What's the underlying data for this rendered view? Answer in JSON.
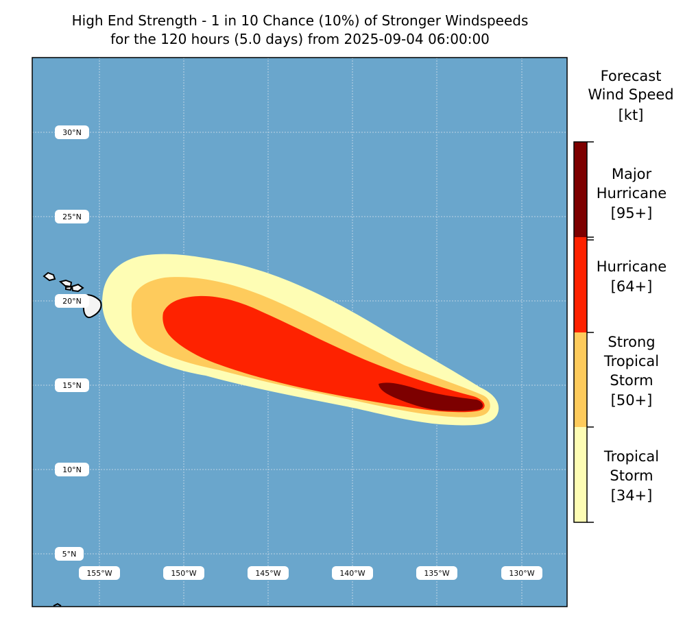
{
  "title": {
    "line1": "High End Strength - 1 in 10 Chance (10%) of Stronger Windspeeds",
    "line2": "for the 120 hours (5.0 days) from 2025-09-04 06:00:00"
  },
  "map": {
    "ocean_color": "#6aa6cc",
    "latitude_labels": [
      "30°N",
      "25°N",
      "20°N",
      "15°N",
      "10°N",
      "5°N"
    ],
    "longitude_labels": [
      "155°W",
      "150°W",
      "145°W",
      "140°W",
      "135°W",
      "130°W"
    ],
    "land": "Hawaiian Islands",
    "wind_field": {
      "tropical_storm_color": "#fefdb4",
      "strong_tropical_storm_color": "#fecb5c",
      "hurricane_color": "#fe2200",
      "major_hurricane_color": "#7d0000"
    }
  },
  "colorbar": {
    "title_lines": [
      "Forecast",
      "Wind Speed",
      "[kt]"
    ],
    "categories": [
      {
        "lines": [
          "Major",
          "Hurricane",
          "[95+]"
        ],
        "color": "#7d0000"
      },
      {
        "lines": [
          "Hurricane",
          "[64+]"
        ],
        "color": "#fe2200"
      },
      {
        "lines": [
          "Strong",
          "Tropical",
          "Storm",
          "[50+]"
        ],
        "color": "#fecb5c"
      },
      {
        "lines": [
          "Tropical",
          "Storm",
          "[34+]"
        ],
        "color": "#fefdb4"
      }
    ]
  }
}
